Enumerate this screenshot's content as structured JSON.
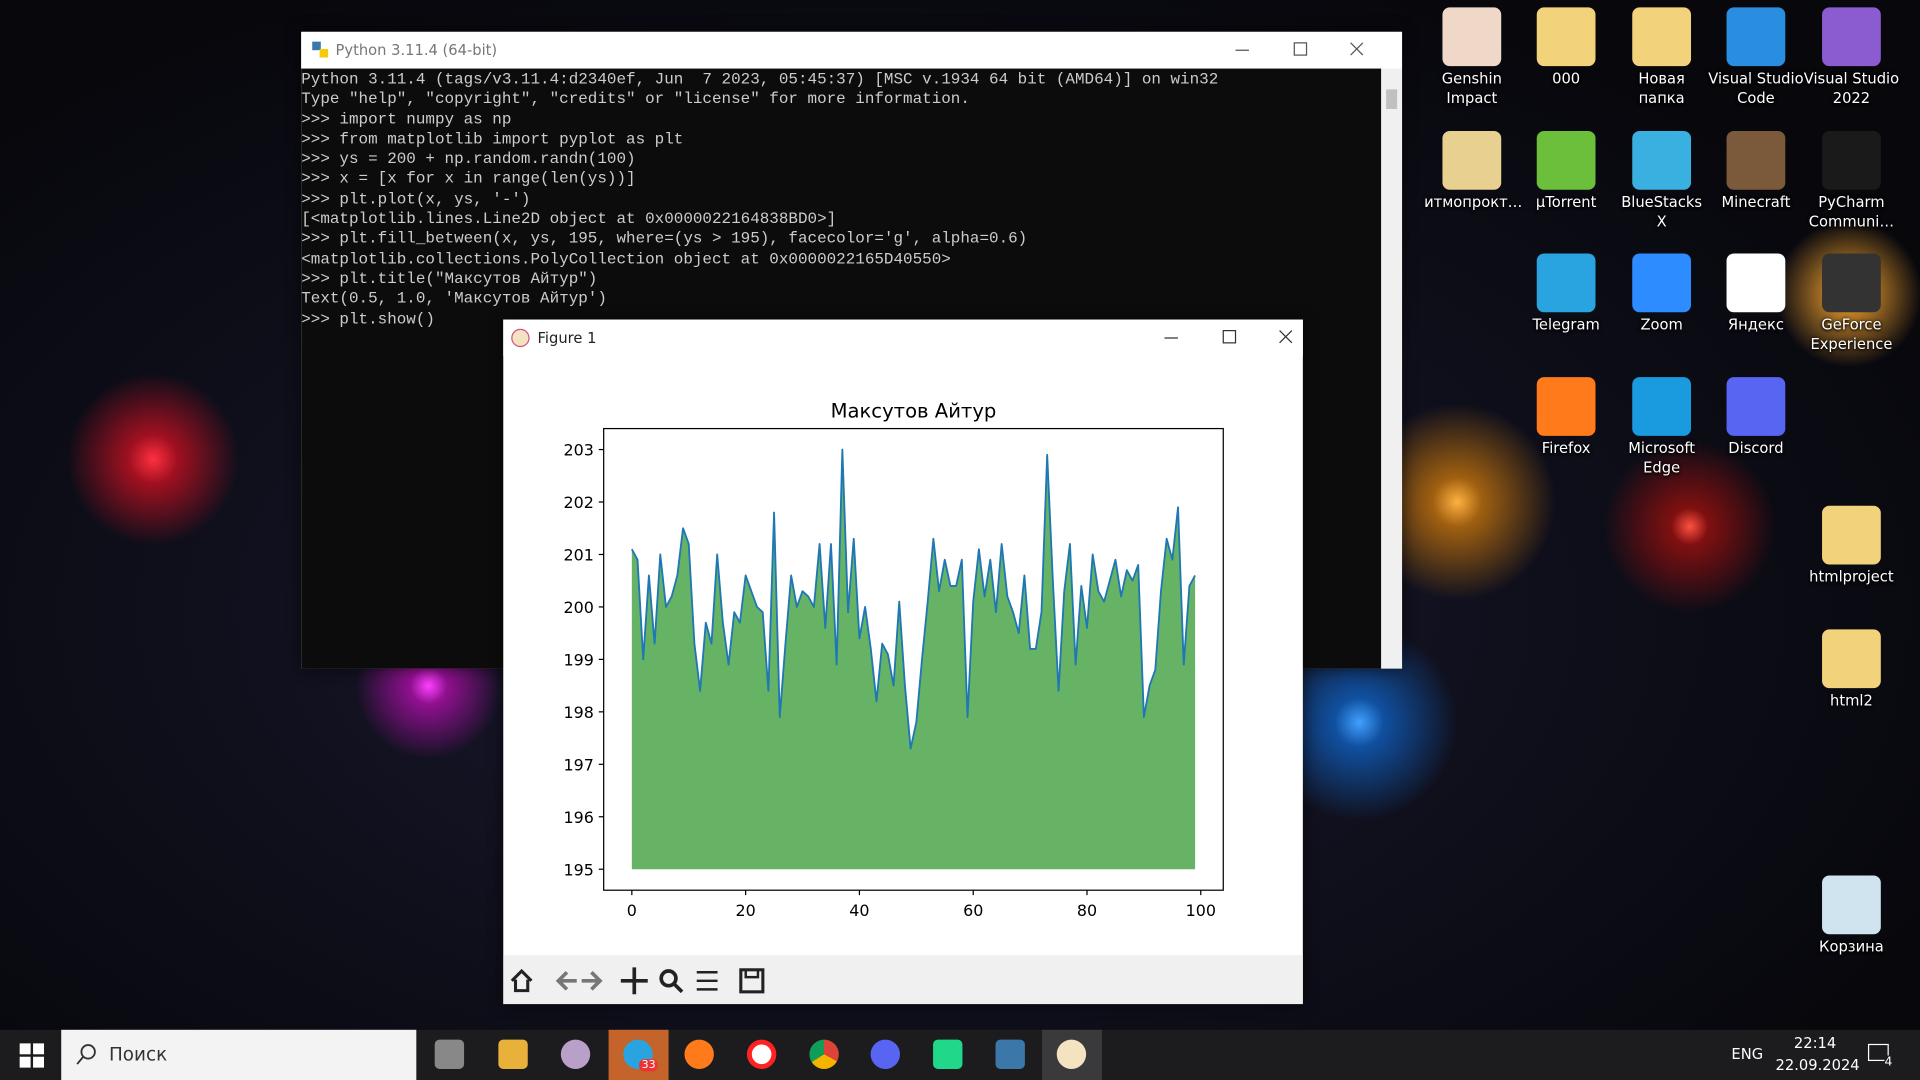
{
  "terminal": {
    "title": "Python 3.11.4 (64-bit)",
    "lines": [
      "Python 3.11.4 (tags/v3.11.4:d2340ef, Jun  7 2023, 05:45:37) [MSC v.1934 64 bit (AMD64)] on win32",
      "Type \"help\", \"copyright\", \"credits\" or \"license\" for more information.",
      ">>> import numpy as np",
      ">>> from matplotlib import pyplot as plt",
      ">>> ys = 200 + np.random.randn(100)",
      ">>> x = [x for x in range(len(ys))]",
      ">>> plt.plot(x, ys, '-')",
      "[<matplotlib.lines.Line2D object at 0x0000022164838BD0>]",
      ">>> plt.fill_between(x, ys, 195, where=(ys > 195), facecolor='g', alpha=0.6)",
      "<matplotlib.collections.PolyCollection object at 0x0000022165D40550>",
      ">>> plt.title(\"Максутов Айтур\")",
      "Text(0.5, 1.0, 'Максутов Айтур')",
      ">>> plt.show()"
    ]
  },
  "figure": {
    "title": "Figure 1",
    "chart_data": {
      "type": "line",
      "title": "Максутов Айтур",
      "x": [
        0,
        1,
        2,
        3,
        4,
        5,
        6,
        7,
        8,
        9,
        10,
        11,
        12,
        13,
        14,
        15,
        16,
        17,
        18,
        19,
        20,
        21,
        22,
        23,
        24,
        25,
        26,
        27,
        28,
        29,
        30,
        31,
        32,
        33,
        34,
        35,
        36,
        37,
        38,
        39,
        40,
        41,
        42,
        43,
        44,
        45,
        46,
        47,
        48,
        49,
        50,
        51,
        52,
        53,
        54,
        55,
        56,
        57,
        58,
        59,
        60,
        61,
        62,
        63,
        64,
        65,
        66,
        67,
        68,
        69,
        70,
        71,
        72,
        73,
        74,
        75,
        76,
        77,
        78,
        79,
        80,
        81,
        82,
        83,
        84,
        85,
        86,
        87,
        88,
        89,
        90,
        91,
        92,
        93,
        94,
        95,
        96,
        97,
        98,
        99
      ],
      "series": [
        {
          "color": "#1f77b4",
          "values": [
            201.1,
            200.9,
            199.0,
            200.6,
            199.3,
            201.0,
            200.0,
            200.2,
            200.6,
            201.5,
            201.2,
            199.3,
            198.4,
            199.7,
            199.3,
            201.0,
            199.7,
            198.9,
            199.9,
            199.7,
            200.6,
            200.3,
            200.0,
            199.9,
            198.4,
            201.8,
            197.9,
            199.3,
            200.6,
            200.0,
            200.3,
            200.2,
            200.0,
            201.2,
            199.6,
            201.2,
            198.9,
            203.0,
            199.9,
            201.3,
            199.4,
            200.0,
            199.2,
            198.2,
            199.3,
            199.1,
            198.5,
            200.1,
            198.5,
            197.3,
            197.8,
            199.0,
            200.1,
            201.3,
            200.3,
            200.9,
            200.4,
            200.4,
            200.9,
            197.9,
            200.1,
            201.1,
            200.2,
            200.9,
            199.9,
            201.2,
            200.2,
            199.9,
            199.5,
            200.6,
            199.2,
            199.2,
            199.9,
            202.9,
            200.5,
            198.4,
            200.3,
            201.2,
            198.9,
            200.4,
            199.6,
            201.0,
            200.3,
            200.1,
            200.5,
            200.9,
            200.2,
            200.7,
            200.5,
            200.8,
            197.9,
            198.5,
            198.8,
            200.3,
            201.3,
            200.9,
            201.9,
            198.9,
            200.4,
            200.6
          ]
        }
      ],
      "fill": {
        "to": 195,
        "color": "#008000",
        "alpha": 0.6
      },
      "xlim": [
        -4.95,
        103.95
      ],
      "xticks": [
        0,
        20,
        40,
        60,
        80,
        100
      ],
      "ylim": [
        194.6,
        203.4
      ],
      "yticks": [
        195,
        196,
        197,
        198,
        199,
        200,
        201,
        202,
        203
      ]
    }
  },
  "desktop": {
    "icons": [
      "Genshin Impact",
      "000",
      "Новая папка",
      "Visual Studio Code",
      "Visual Studio 2022",
      "итмопрокт…",
      "µTorrent",
      "BlueStacks X",
      "Minecraft",
      "PyCharm Communi…",
      "Telegram",
      "Zoom",
      "Яндекс",
      "GeForce Experience",
      "Firefox",
      "Microsoft Edge",
      "Discord",
      "htmlproject",
      "html2",
      "Корзина"
    ]
  },
  "taskbar": {
    "search": "Поиск",
    "telegram_badge": "33",
    "language": "ENG",
    "time": "22:14",
    "date": "22.09.2024",
    "notifications": "4"
  }
}
